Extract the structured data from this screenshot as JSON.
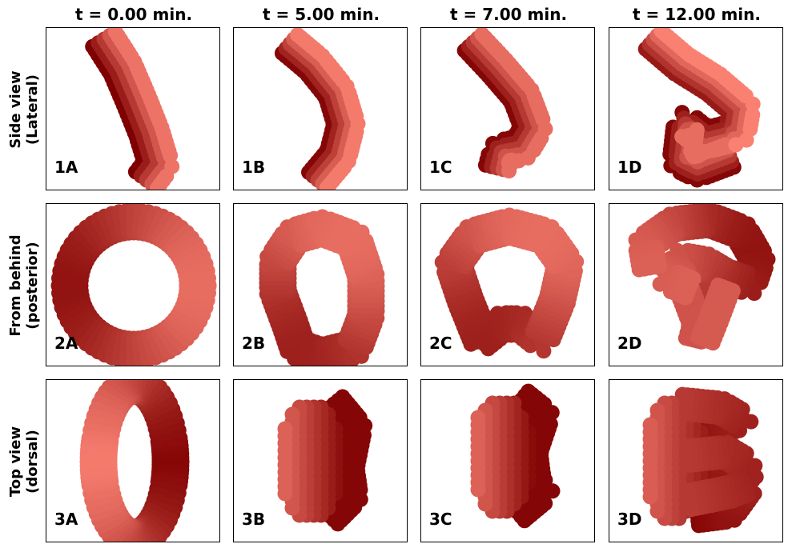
{
  "column_titles": [
    "t = 0.00 min.",
    "t = 5.00 min.",
    "t = 7.00 min.",
    "t = 12.00 min."
  ],
  "row_labels": [
    [
      "Side view",
      "(Lateral)"
    ],
    [
      "From behind",
      "(posterior)"
    ],
    [
      "Top view",
      "(dorsal)"
    ]
  ],
  "panel_labels": [
    [
      "1A",
      "1B",
      "1C",
      "1D"
    ],
    [
      "2A",
      "2B",
      "2C",
      "2D"
    ],
    [
      "3A",
      "3B",
      "3C",
      "3D"
    ]
  ],
  "colors": {
    "dark": "#7f0000",
    "light": "#fa8072"
  }
}
